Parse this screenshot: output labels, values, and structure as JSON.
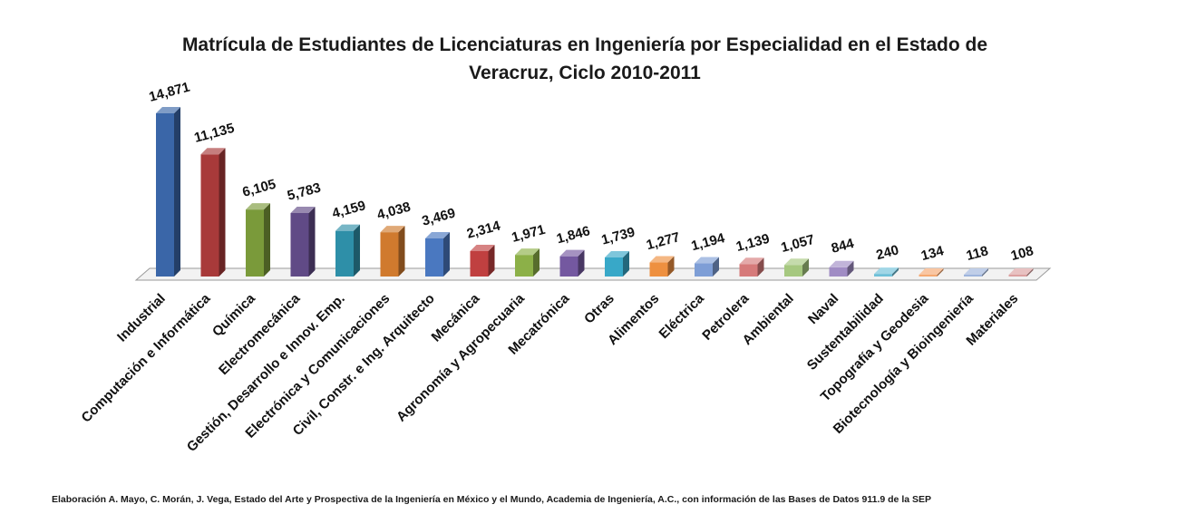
{
  "chart_data": {
    "type": "bar",
    "title_lines": [
      "Matrícula de Estudiantes de Licenciaturas en Ingeniería por Especialidad en el Estado de",
      "Veracruz, Ciclo 2010-2011"
    ],
    "categories": [
      "Industrial",
      "Computación e Informática",
      "Química",
      "Electromecánica",
      "Gestión, Desarrollo e Innov. Emp.",
      "Electrónica y Comunicaciones",
      "Civil, Constr. e Ing. Arquitecto",
      "Mecánica",
      "Agronomía y Agropecuaria",
      "Mecatrónica",
      "Otras",
      "Alimentos",
      "Eléctrica",
      "Petrolera",
      "Ambiental",
      "Naval",
      "Sustentabilidad",
      "Topografía y Geodesia",
      "Biotecnología y Bioingeniería",
      "Materiales"
    ],
    "values": [
      14871,
      11135,
      6105,
      5783,
      4159,
      4038,
      3469,
      2314,
      1971,
      1846,
      1739,
      1277,
      1194,
      1139,
      1057,
      844,
      240,
      134,
      118,
      108
    ],
    "value_labels": [
      "14,871",
      "11,135",
      "6,105",
      "5,783",
      "4,159",
      "4,038",
      "3,469",
      "2,314",
      "1,971",
      "1,846",
      "1,739",
      "1,277",
      "1,194",
      "1,139",
      "1,057",
      "844",
      "240",
      "134",
      "118",
      "108"
    ],
    "colors": [
      "#3A66A8",
      "#A83A3A",
      "#7A9A3A",
      "#604A86",
      "#2E8FA8",
      "#D07A2E",
      "#4A78C0",
      "#C04040",
      "#8CB048",
      "#7458A0",
      "#38A8C8",
      "#EE9040",
      "#7E9ED6",
      "#D67A7A",
      "#A6C880",
      "#A08CC4",
      "#6EC0D8",
      "#F6A870",
      "#9EB4DC",
      "#DCA0A0"
    ],
    "ylim": [
      0,
      15000
    ],
    "grid": false,
    "legend": "none"
  },
  "source_note": "Elaboración A. Mayo, C. Morán, J. Vega, Estado del Arte y Prospectiva de la Ingeniería en México y el Mundo, Academia de Ingeniería, A.C., con información de las Bases de Datos  911.9  de la SEP"
}
